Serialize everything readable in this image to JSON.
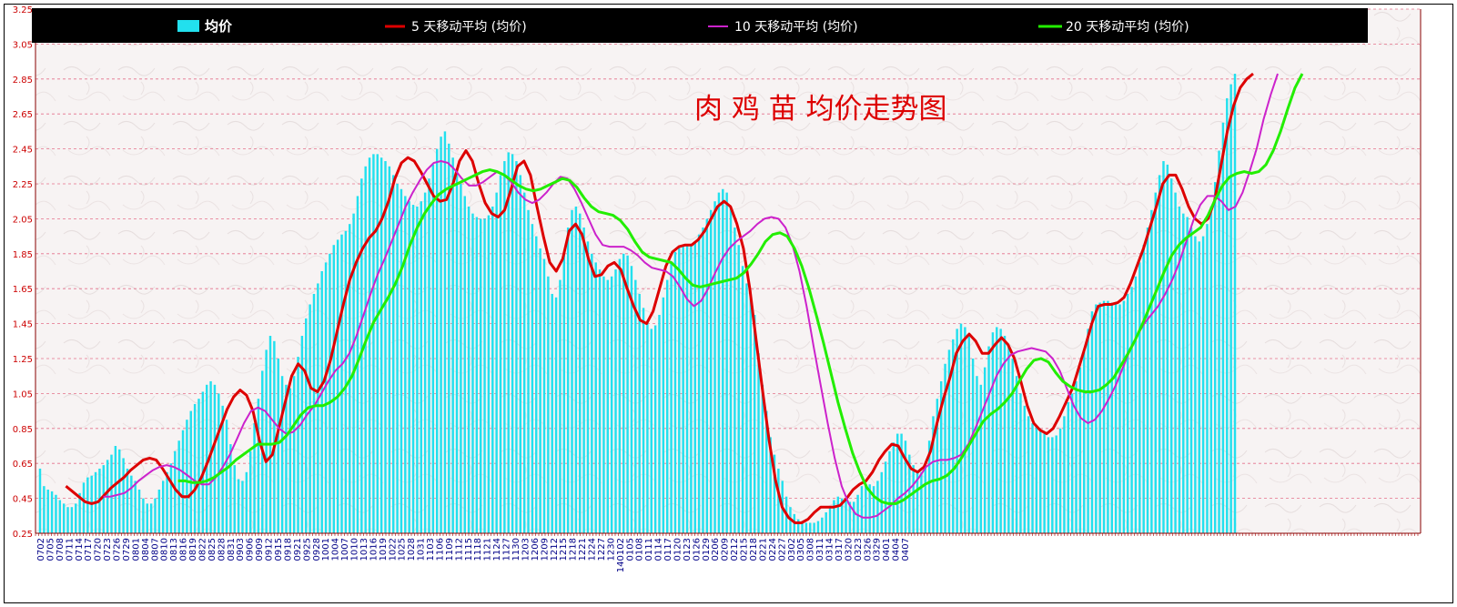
{
  "chart_data": {
    "type": "bar",
    "title": "肉 鸡 苗 均价走势图",
    "ylim": [
      0.25,
      3.25
    ],
    "yticks": [
      "0.25",
      "0.45",
      "0.65",
      "0.85",
      "1.05",
      "1.25",
      "1.45",
      "1.65",
      "1.85",
      "2.05",
      "2.25",
      "2.45",
      "2.65",
      "2.85",
      "3.05",
      "3.25"
    ],
    "ytick_values": [
      0.25,
      0.45,
      0.65,
      0.85,
      1.05,
      1.25,
      1.45,
      1.65,
      1.85,
      2.05,
      2.25,
      2.45,
      2.65,
      2.85,
      3.05,
      3.25
    ],
    "xticks": [
      "0702",
      "0705",
      "0708",
      "0711",
      "0714",
      "0717",
      "0720",
      "0723",
      "0726",
      "0729",
      "0801",
      "0804",
      "0807",
      "0810",
      "0813",
      "0816",
      "0819",
      "0822",
      "0825",
      "0828",
      "0831",
      "0903",
      "0906",
      "0909",
      "0912",
      "0915",
      "0918",
      "0921",
      "0925",
      "0928",
      "1001",
      "1004",
      "1007",
      "1010",
      "1013",
      "1016",
      "1019",
      "1022",
      "1025",
      "1028",
      "1031",
      "1103",
      "1106",
      "1109",
      "1112",
      "1115",
      "1118",
      "1121",
      "1124",
      "1127",
      "1130",
      "1203",
      "1206",
      "1209",
      "1212",
      "1215",
      "1218",
      "1221",
      "1224",
      "1227",
      "1230",
      "140102",
      "0105",
      "0108",
      "0111",
      "0114",
      "0117",
      "0120",
      "0123",
      "0126",
      "0129",
      "0206",
      "0209",
      "0212",
      "0215",
      "0218",
      "0221",
      "0224",
      "0227",
      "0302",
      "0305",
      "0308",
      "0311",
      "0314",
      "0317",
      "0320",
      "0323",
      "0326",
      "0329",
      "0401",
      "0404",
      "0407"
    ],
    "legend": [
      "均价",
      "5 天移动平均 (均价)",
      "10 天移动平均 (均价)",
      "20 天移动平均 (均价)"
    ],
    "legend_position": "top",
    "grid": true,
    "series": [
      {
        "name": "均价",
        "type": "bar",
        "color": "#22e0ee",
        "values": [
          0.62,
          0.52,
          0.5,
          0.49,
          0.47,
          0.44,
          0.42,
          0.4,
          0.4,
          0.42,
          0.48,
          0.54,
          0.57,
          0.58,
          0.6,
          0.62,
          0.64,
          0.67,
          0.7,
          0.75,
          0.73,
          0.68,
          0.62,
          0.58,
          0.55,
          0.5,
          0.45,
          0.42,
          0.42,
          0.45,
          0.5,
          0.55,
          0.6,
          0.65,
          0.72,
          0.78,
          0.84,
          0.9,
          0.95,
          0.99,
          1.02,
          1.06,
          1.1,
          1.12,
          1.1,
          1.05,
          0.98,
          0.9,
          0.76,
          0.64,
          0.56,
          0.55,
          0.6,
          0.72,
          0.88,
          1.02,
          1.18,
          1.3,
          1.38,
          1.35,
          1.25,
          1.15,
          1.1,
          1.08,
          1.15,
          1.26,
          1.38,
          1.48,
          1.56,
          1.62,
          1.68,
          1.75,
          1.8,
          1.85,
          1.9,
          1.93,
          1.96,
          1.98,
          2.02,
          2.08,
          2.18,
          2.28,
          2.35,
          2.4,
          2.42,
          2.42,
          2.4,
          2.38,
          2.35,
          2.3,
          2.25,
          2.22,
          2.18,
          2.15,
          2.13,
          2.12,
          2.15,
          2.2,
          2.28,
          2.36,
          2.45,
          2.52,
          2.55,
          2.48,
          2.4,
          2.32,
          2.25,
          2.18,
          2.12,
          2.08,
          2.06,
          2.05,
          2.05,
          2.07,
          2.12,
          2.2,
          2.3,
          2.38,
          2.43,
          2.42,
          2.38,
          2.3,
          2.2,
          2.1,
          2.02,
          1.95,
          1.88,
          1.82,
          1.72,
          1.62,
          1.6,
          1.7,
          1.85,
          2.0,
          2.1,
          2.12,
          2.08,
          2.0,
          1.92,
          1.85,
          1.8,
          1.76,
          1.72,
          1.7,
          1.72,
          1.76,
          1.82,
          1.85,
          1.84,
          1.78,
          1.7,
          1.62,
          1.54,
          1.46,
          1.42,
          1.44,
          1.5,
          1.6,
          1.7,
          1.8,
          1.86,
          1.89,
          1.9,
          1.9,
          1.9,
          1.92,
          1.96,
          2.0,
          2.05,
          2.1,
          2.15,
          2.2,
          2.22,
          2.2,
          2.12,
          2.0,
          1.9,
          1.78,
          1.68,
          1.62,
          1.5,
          1.28,
          1.1,
          0.95,
          0.8,
          0.7,
          0.62,
          0.55,
          0.46,
          0.4,
          0.36,
          0.33,
          0.32,
          0.31,
          0.31,
          0.31,
          0.32,
          0.34,
          0.37,
          0.4,
          0.44,
          0.46,
          0.45,
          0.44,
          0.43,
          0.43,
          0.47,
          0.52,
          0.53,
          0.53,
          0.52,
          0.55,
          0.6,
          0.66,
          0.72,
          0.77,
          0.82,
          0.82,
          0.78,
          0.7,
          0.64,
          0.6,
          0.6,
          0.65,
          0.78,
          0.92,
          1.02,
          1.12,
          1.22,
          1.3,
          1.36,
          1.42,
          1.45,
          1.43,
          1.38,
          1.25,
          1.15,
          1.1,
          1.2,
          1.32,
          1.4,
          1.43,
          1.42,
          1.38,
          1.32,
          1.25,
          1.15,
          1.05,
          0.98,
          0.92,
          0.88,
          0.86,
          0.84,
          0.82,
          0.8,
          0.8,
          0.81,
          0.85,
          0.92,
          1.0,
          1.05,
          1.12,
          1.2,
          1.3,
          1.42,
          1.52,
          1.56,
          1.57,
          1.58,
          1.58,
          1.57,
          1.56,
          1.56,
          1.58,
          1.62,
          1.66,
          1.72,
          1.8,
          1.9,
          2.0,
          2.1,
          2.2,
          2.3,
          2.38,
          2.36,
          2.28,
          2.2,
          2.12,
          2.08,
          2.06,
          2.0,
          1.95,
          1.92,
          1.95,
          2.02,
          2.12,
          2.26,
          2.44,
          2.6,
          2.74,
          2.82,
          2.88
        ]
      },
      {
        "name": "5 天移动平均 (均价)",
        "type": "line",
        "color": "#dd0000",
        "values": [
          null,
          null,
          null,
          null,
          0.52,
          0.49,
          0.46,
          0.43,
          0.42,
          0.43,
          0.47,
          0.51,
          0.54,
          0.57,
          0.61,
          0.64,
          0.67,
          0.68,
          0.67,
          0.62,
          0.56,
          0.5,
          0.46,
          0.46,
          0.5,
          0.57,
          0.66,
          0.76,
          0.86,
          0.96,
          1.03,
          1.07,
          1.04,
          0.95,
          0.78,
          0.66,
          0.7,
          0.85,
          1.0,
          1.15,
          1.22,
          1.18,
          1.08,
          1.06,
          1.12,
          1.24,
          1.4,
          1.56,
          1.7,
          1.8,
          1.88,
          1.94,
          1.98,
          2.05,
          2.15,
          2.28,
          2.37,
          2.4,
          2.38,
          2.32,
          2.25,
          2.18,
          2.15,
          2.16,
          2.25,
          2.38,
          2.44,
          2.38,
          2.25,
          2.14,
          2.08,
          2.06,
          2.1,
          2.22,
          2.35,
          2.38,
          2.3,
          2.12,
          1.95,
          1.8,
          1.75,
          1.82,
          1.98,
          2.02,
          1.96,
          1.82,
          1.72,
          1.73,
          1.78,
          1.8,
          1.76,
          1.65,
          1.55,
          1.47,
          1.45,
          1.52,
          1.65,
          1.78,
          1.86,
          1.89,
          1.9,
          1.9,
          1.93,
          1.98,
          2.05,
          2.12,
          2.15,
          2.12,
          2.02,
          1.88,
          1.65,
          1.35,
          1.06,
          0.78,
          0.55,
          0.4,
          0.34,
          0.31,
          0.31,
          0.33,
          0.37,
          0.4,
          0.4,
          0.4,
          0.41,
          0.45,
          0.5,
          0.53,
          0.55,
          0.6,
          0.67,
          0.72,
          0.76,
          0.75,
          0.68,
          0.62,
          0.6,
          0.63,
          0.72,
          0.88,
          1.02,
          1.14,
          1.28,
          1.35,
          1.39,
          1.35,
          1.28,
          1.28,
          1.33,
          1.37,
          1.33,
          1.25,
          1.12,
          0.98,
          0.88,
          0.84,
          0.82,
          0.85,
          0.92,
          1.0,
          1.08,
          1.2,
          1.32,
          1.45,
          1.55,
          1.56,
          1.56,
          1.57,
          1.6,
          1.68,
          1.78,
          1.88,
          2.0,
          2.12,
          2.25,
          2.3,
          2.3,
          2.22,
          2.12,
          2.05,
          2.02,
          2.05,
          2.15,
          2.35,
          2.55,
          2.7,
          2.8,
          2.85,
          2.88
        ]
      },
      {
        "name": "10 天移动平均 (均价)",
        "type": "line",
        "color": "#cc22cc",
        "values": [
          null,
          null,
          null,
          null,
          null,
          null,
          null,
          null,
          null,
          0.46,
          0.46,
          0.47,
          0.48,
          0.51,
          0.55,
          0.58,
          0.61,
          0.63,
          0.64,
          0.63,
          0.61,
          0.58,
          0.55,
          0.53,
          0.53,
          0.57,
          0.63,
          0.7,
          0.79,
          0.88,
          0.95,
          0.97,
          0.95,
          0.9,
          0.85,
          0.82,
          0.83,
          0.87,
          0.93,
          0.98,
          1.05,
          1.12,
          1.18,
          1.22,
          1.28,
          1.38,
          1.5,
          1.62,
          1.73,
          1.82,
          1.92,
          2.02,
          2.12,
          2.2,
          2.27,
          2.33,
          2.37,
          2.38,
          2.37,
          2.33,
          2.28,
          2.24,
          2.24,
          2.26,
          2.29,
          2.32,
          2.3,
          2.26,
          2.2,
          2.16,
          2.14,
          2.16,
          2.2,
          2.25,
          2.29,
          2.28,
          2.22,
          2.14,
          2.05,
          1.96,
          1.9,
          1.89,
          1.89,
          1.89,
          1.87,
          1.84,
          1.8,
          1.77,
          1.76,
          1.75,
          1.72,
          1.66,
          1.59,
          1.55,
          1.58,
          1.65,
          1.74,
          1.82,
          1.88,
          1.92,
          1.95,
          1.98,
          2.02,
          2.05,
          2.06,
          2.05,
          2.0,
          1.9,
          1.75,
          1.55,
          1.32,
          1.1,
          0.88,
          0.68,
          0.52,
          0.42,
          0.36,
          0.34,
          0.34,
          0.35,
          0.38,
          0.41,
          0.45,
          0.48,
          0.52,
          0.57,
          0.63,
          0.66,
          0.67,
          0.67,
          0.68,
          0.7,
          0.76,
          0.85,
          0.95,
          1.05,
          1.15,
          1.22,
          1.27,
          1.29,
          1.3,
          1.31,
          1.3,
          1.29,
          1.25,
          1.18,
          1.08,
          0.98,
          0.91,
          0.88,
          0.9,
          0.95,
          1.02,
          1.1,
          1.2,
          1.3,
          1.38,
          1.45,
          1.5,
          1.55,
          1.62,
          1.7,
          1.8,
          1.92,
          2.04,
          2.13,
          2.18,
          2.18,
          2.15,
          2.1,
          2.12,
          2.2,
          2.32,
          2.45,
          2.62,
          2.76,
          2.88
        ]
      },
      {
        "name": "20 天移动平均 (均价)",
        "type": "line",
        "color": "#22ee00",
        "values": [
          null,
          null,
          null,
          null,
          null,
          null,
          null,
          null,
          null,
          null,
          null,
          null,
          null,
          null,
          null,
          null,
          null,
          null,
          null,
          0.55,
          0.55,
          0.54,
          0.54,
          0.55,
          0.57,
          0.6,
          0.63,
          0.67,
          0.7,
          0.73,
          0.76,
          0.76,
          0.76,
          0.77,
          0.81,
          0.87,
          0.93,
          0.97,
          0.98,
          0.98,
          1.0,
          1.03,
          1.08,
          1.15,
          1.25,
          1.36,
          1.46,
          1.53,
          1.6,
          1.68,
          1.78,
          1.9,
          2.0,
          2.08,
          2.14,
          2.19,
          2.22,
          2.24,
          2.26,
          2.28,
          2.3,
          2.32,
          2.33,
          2.32,
          2.3,
          2.27,
          2.24,
          2.22,
          2.21,
          2.22,
          2.24,
          2.26,
          2.28,
          2.27,
          2.23,
          2.17,
          2.12,
          2.09,
          2.08,
          2.07,
          2.04,
          1.99,
          1.92,
          1.86,
          1.83,
          1.82,
          1.81,
          1.8,
          1.76,
          1.71,
          1.67,
          1.66,
          1.67,
          1.68,
          1.69,
          1.7,
          1.71,
          1.74,
          1.79,
          1.85,
          1.92,
          1.96,
          1.97,
          1.95,
          1.88,
          1.78,
          1.65,
          1.5,
          1.34,
          1.17,
          1.0,
          0.85,
          0.71,
          0.6,
          0.51,
          0.46,
          0.43,
          0.42,
          0.42,
          0.44,
          0.47,
          0.5,
          0.53,
          0.55,
          0.56,
          0.58,
          0.62,
          0.68,
          0.75,
          0.82,
          0.89,
          0.93,
          0.96,
          1.0,
          1.05,
          1.12,
          1.19,
          1.24,
          1.25,
          1.23,
          1.17,
          1.12,
          1.09,
          1.07,
          1.06,
          1.06,
          1.07,
          1.1,
          1.14,
          1.21,
          1.28,
          1.36,
          1.45,
          1.55,
          1.65,
          1.75,
          1.84,
          1.9,
          1.94,
          1.97,
          2.0,
          2.07,
          2.16,
          2.24,
          2.29,
          2.31,
          2.32,
          2.31,
          2.32,
          2.36,
          2.44,
          2.55,
          2.68,
          2.8,
          2.88
        ]
      }
    ]
  }
}
